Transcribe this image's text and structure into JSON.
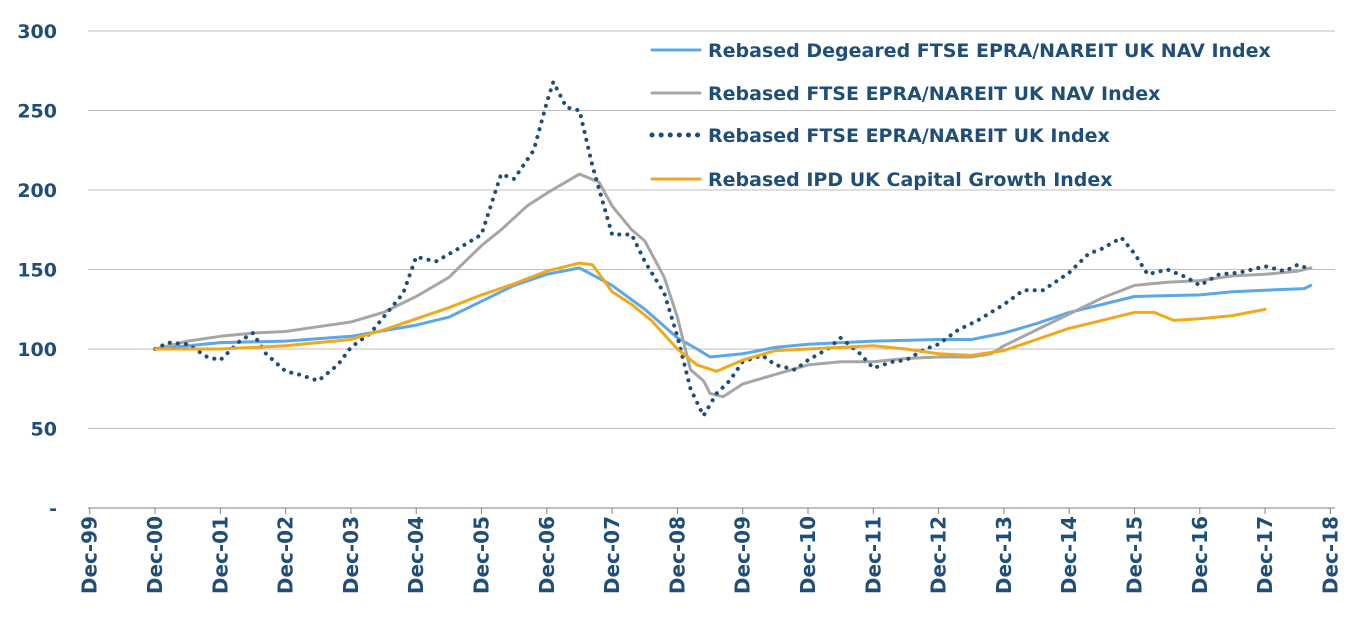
{
  "chart_data": {
    "type": "line",
    "title": "",
    "xlabel": "",
    "ylabel": "",
    "ylim": [
      0,
      300
    ],
    "xlim": [
      -1,
      18
    ],
    "x_unit": "years since Dec-00",
    "y_ticks": [
      {
        "value": 0,
        "label": "-"
      },
      {
        "value": 50,
        "label": "50"
      },
      {
        "value": 100,
        "label": "100"
      },
      {
        "value": 150,
        "label": "150"
      },
      {
        "value": 200,
        "label": "200"
      },
      {
        "value": 250,
        "label": "250"
      },
      {
        "value": 300,
        "label": "300"
      }
    ],
    "x_ticks": [
      "Dec-99",
      "Dec-00",
      "Dec-01",
      "Dec-02",
      "Dec-03",
      "Dec-04",
      "Dec-05",
      "Dec-06",
      "Dec-07",
      "Dec-08",
      "Dec-09",
      "Dec-10",
      "Dec-11",
      "Dec-12",
      "Dec-13",
      "Dec-14",
      "Dec-15",
      "Dec-16",
      "Dec-17",
      "Dec-18"
    ],
    "grid": "horizontal",
    "legend_position": "top-right",
    "series": [
      {
        "name": "Rebased Degeared FTSE EPRA/NAREIT UK NAV Index",
        "color": "#5ba7e8",
        "style": "solid",
        "points": [
          [
            0,
            100
          ],
          [
            1,
            104
          ],
          [
            2,
            105
          ],
          [
            3,
            108
          ],
          [
            4,
            115
          ],
          [
            4.5,
            120
          ],
          [
            5,
            130
          ],
          [
            5.5,
            140
          ],
          [
            6,
            147
          ],
          [
            6.5,
            151
          ],
          [
            7,
            140
          ],
          [
            7.5,
            125
          ],
          [
            8,
            107
          ],
          [
            8.3,
            100
          ],
          [
            8.5,
            95
          ],
          [
            9,
            97
          ],
          [
            9.5,
            101
          ],
          [
            10,
            103
          ],
          [
            11,
            105
          ],
          [
            12,
            106
          ],
          [
            12.5,
            106
          ],
          [
            13,
            110
          ],
          [
            13.5,
            116
          ],
          [
            14,
            123
          ],
          [
            14.5,
            128
          ],
          [
            15,
            133
          ],
          [
            16,
            134
          ],
          [
            16.5,
            136
          ],
          [
            17,
            137
          ],
          [
            17.6,
            138
          ],
          [
            17.7,
            140
          ]
        ]
      },
      {
        "name": "Rebased FTSE EPRA/NAREIT UK NAV Index",
        "color": "#a6a6a6",
        "style": "solid",
        "points": [
          [
            0,
            100
          ],
          [
            0.5,
            105
          ],
          [
            1,
            108
          ],
          [
            1.5,
            110
          ],
          [
            2,
            111
          ],
          [
            2.5,
            114
          ],
          [
            3,
            117
          ],
          [
            3.5,
            123
          ],
          [
            4,
            133
          ],
          [
            4.5,
            145
          ],
          [
            5,
            165
          ],
          [
            5.3,
            175
          ],
          [
            5.7,
            190
          ],
          [
            6,
            198
          ],
          [
            6.5,
            210
          ],
          [
            6.8,
            205
          ],
          [
            7,
            190
          ],
          [
            7.3,
            175
          ],
          [
            7.5,
            168
          ],
          [
            7.8,
            145
          ],
          [
            8,
            120
          ],
          [
            8.2,
            87
          ],
          [
            8.4,
            80
          ],
          [
            8.5,
            72
          ],
          [
            8.7,
            70
          ],
          [
            9,
            78
          ],
          [
            9.5,
            84
          ],
          [
            10,
            90
          ],
          [
            10.5,
            92
          ],
          [
            11,
            92
          ],
          [
            11.5,
            94
          ],
          [
            12,
            95
          ],
          [
            12.5,
            95
          ],
          [
            12.8,
            97
          ],
          [
            13,
            102
          ],
          [
            13.5,
            112
          ],
          [
            14,
            122
          ],
          [
            14.5,
            132
          ],
          [
            15,
            140
          ],
          [
            15.5,
            142
          ],
          [
            16,
            143
          ],
          [
            16.5,
            146
          ],
          [
            17,
            147
          ],
          [
            17.5,
            149
          ],
          [
            17.7,
            151
          ]
        ]
      },
      {
        "name": "Rebased FTSE EPRA/NAREIT UK Index",
        "color": "#1f4e79",
        "style": "dotted",
        "points": [
          [
            0,
            100
          ],
          [
            0.2,
            104
          ],
          [
            0.5,
            103
          ],
          [
            0.8,
            95
          ],
          [
            1,
            93
          ],
          [
            1.3,
            105
          ],
          [
            1.5,
            110
          ],
          [
            1.7,
            97
          ],
          [
            2,
            86
          ],
          [
            2.2,
            84
          ],
          [
            2.5,
            80
          ],
          [
            2.8,
            90
          ],
          [
            3,
            101
          ],
          [
            3.3,
            110
          ],
          [
            3.5,
            120
          ],
          [
            3.8,
            135
          ],
          [
            4,
            158
          ],
          [
            4.3,
            155
          ],
          [
            4.6,
            162
          ],
          [
            5,
            172
          ],
          [
            5.3,
            210
          ],
          [
            5.5,
            207
          ],
          [
            5.8,
            225
          ],
          [
            6,
            255
          ],
          [
            6.1,
            268
          ],
          [
            6.3,
            252
          ],
          [
            6.5,
            250
          ],
          [
            6.7,
            215
          ],
          [
            7,
            172
          ],
          [
            7.3,
            172
          ],
          [
            7.5,
            155
          ],
          [
            7.8,
            135
          ],
          [
            8,
            108
          ],
          [
            8.2,
            75
          ],
          [
            8.4,
            58
          ],
          [
            8.6,
            72
          ],
          [
            8.8,
            80
          ],
          [
            9,
            92
          ],
          [
            9.3,
            96
          ],
          [
            9.5,
            90
          ],
          [
            9.8,
            87
          ],
          [
            10,
            93
          ],
          [
            10.3,
            100
          ],
          [
            10.5,
            107
          ],
          [
            10.8,
            97
          ],
          [
            11,
            88
          ],
          [
            11.3,
            92
          ],
          [
            11.5,
            93
          ],
          [
            11.8,
            100
          ],
          [
            12,
            103
          ],
          [
            12.3,
            112
          ],
          [
            12.6,
            118
          ],
          [
            13,
            128
          ],
          [
            13.3,
            137
          ],
          [
            13.6,
            137
          ],
          [
            14,
            148
          ],
          [
            14.3,
            160
          ],
          [
            14.5,
            163
          ],
          [
            14.8,
            170
          ],
          [
            15,
            160
          ],
          [
            15.2,
            147
          ],
          [
            15.5,
            150
          ],
          [
            15.8,
            145
          ],
          [
            16,
            140
          ],
          [
            16.3,
            147
          ],
          [
            16.6,
            148
          ],
          [
            17,
            152
          ],
          [
            17.3,
            149
          ],
          [
            17.5,
            153
          ],
          [
            17.7,
            150
          ]
        ]
      },
      {
        "name": "Rebased IPD UK Capital Growth Index",
        "color": "#f0a81c",
        "style": "solid",
        "points": [
          [
            0,
            100
          ],
          [
            1,
            100
          ],
          [
            2,
            102
          ],
          [
            3,
            106
          ],
          [
            3.5,
            112
          ],
          [
            4,
            119
          ],
          [
            4.5,
            126
          ],
          [
            5,
            134
          ],
          [
            5.5,
            141
          ],
          [
            6,
            149
          ],
          [
            6.5,
            154
          ],
          [
            6.7,
            153
          ],
          [
            7,
            136
          ],
          [
            7.3,
            128
          ],
          [
            7.6,
            118
          ],
          [
            8,
            100
          ],
          [
            8.3,
            90
          ],
          [
            8.6,
            86
          ],
          [
            9,
            93
          ],
          [
            9.5,
            99
          ],
          [
            10,
            100
          ],
          [
            10.5,
            101
          ],
          [
            11,
            102
          ],
          [
            11.5,
            100
          ],
          [
            12,
            97
          ],
          [
            12.5,
            96
          ],
          [
            13,
            99
          ],
          [
            13.5,
            106
          ],
          [
            14,
            113
          ],
          [
            14.5,
            118
          ],
          [
            15,
            123
          ],
          [
            15.3,
            123
          ],
          [
            15.6,
            118
          ],
          [
            16,
            119
          ],
          [
            16.5,
            121
          ],
          [
            17,
            125
          ]
        ]
      }
    ]
  }
}
